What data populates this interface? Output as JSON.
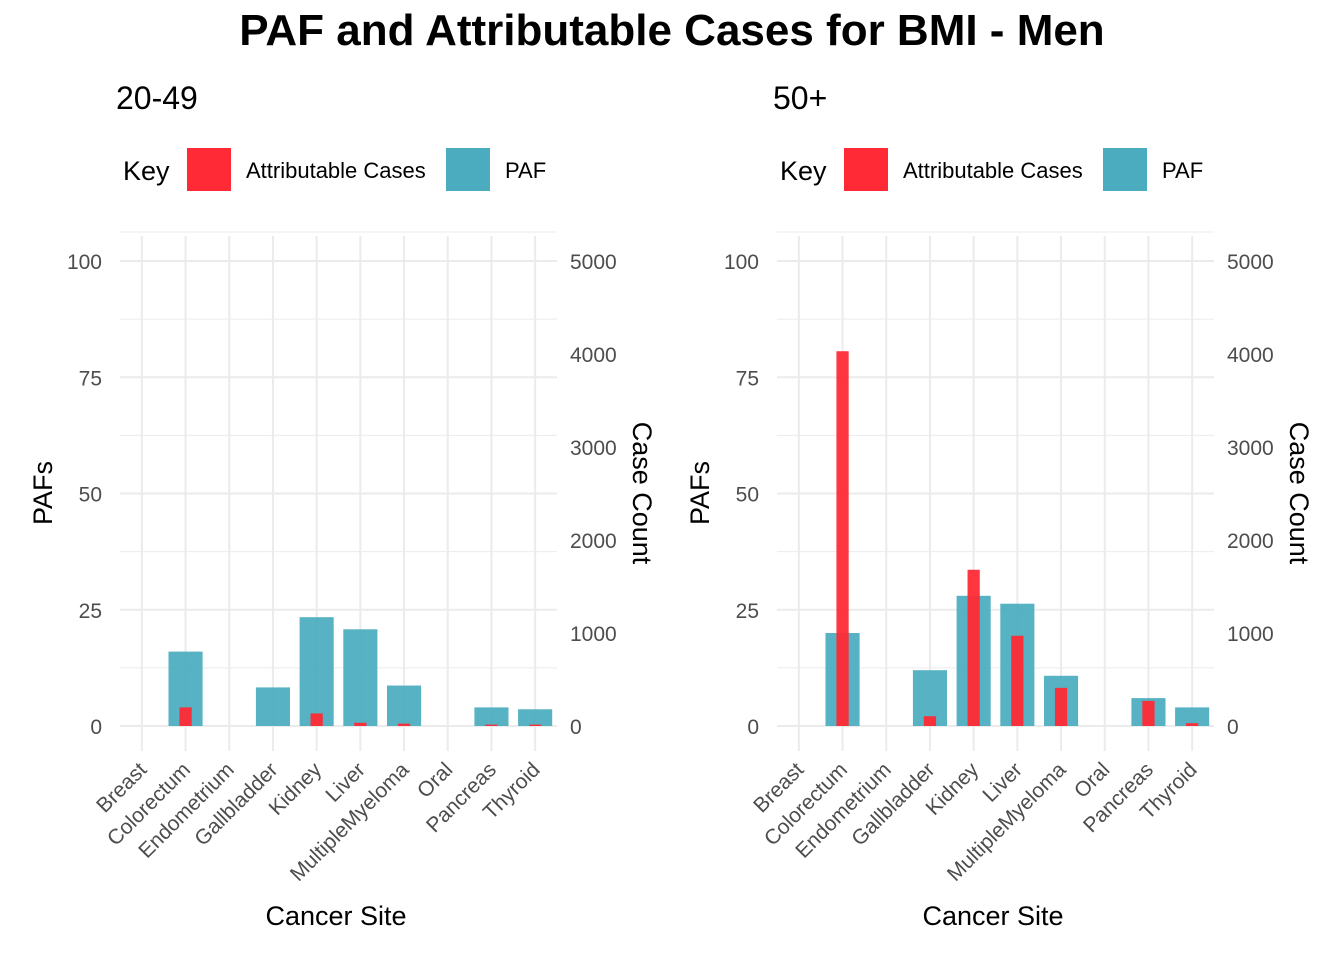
{
  "title": "PAF and Attributable Cases for BMI - Men",
  "colors": {
    "attributable": "#FF2A35",
    "paf": "#4AACBE",
    "grid": "#EBEBEB",
    "tick_text": "#4D4D4D"
  },
  "legend": {
    "title": "Key",
    "items": [
      "Attributable Cases",
      "PAF"
    ]
  },
  "chart_data": [
    {
      "type": "bar",
      "title": "20-49",
      "xlabel": "Cancer Site",
      "ylabel": "PAFs",
      "y2label": "Case Count",
      "ylim": [
        0,
        100
      ],
      "y2lim": [
        0,
        5000
      ],
      "yticks": [
        0,
        25,
        50,
        75,
        100
      ],
      "y2ticks": [
        0,
        1000,
        2000,
        3000,
        4000,
        5000
      ],
      "grid": true,
      "legend_position": "top",
      "categories": [
        "Breast",
        "Colorectum",
        "Endometrium",
        "Gallbladder",
        "Kidney",
        "Liver",
        "MultipleMyeloma",
        "Oral",
        "Pancreas",
        "Thyroid"
      ],
      "series": [
        {
          "name": "PAF",
          "axis": "left",
          "values": [
            0,
            16,
            0,
            8.3,
            23.4,
            20.8,
            8.7,
            0,
            4,
            3.6
          ]
        },
        {
          "name": "Attributable Cases",
          "axis": "right",
          "values": [
            0,
            200,
            0,
            0,
            135,
            35,
            25,
            0,
            15,
            15
          ]
        }
      ]
    },
    {
      "type": "bar",
      "title": "50+",
      "xlabel": "Cancer Site",
      "ylabel": "PAFs",
      "y2label": "Case Count",
      "ylim": [
        0,
        100
      ],
      "y2lim": [
        0,
        5000
      ],
      "yticks": [
        0,
        25,
        50,
        75,
        100
      ],
      "y2ticks": [
        0,
        1000,
        2000,
        3000,
        4000,
        5000
      ],
      "grid": true,
      "legend_position": "top",
      "categories": [
        "Breast",
        "Colorectum",
        "Endometrium",
        "Gallbladder",
        "Kidney",
        "Liver",
        "MultipleMyeloma",
        "Oral",
        "Pancreas",
        "Thyroid"
      ],
      "series": [
        {
          "name": "PAF",
          "axis": "left",
          "values": [
            0,
            20,
            0,
            12,
            28,
            26.3,
            10.8,
            0,
            6,
            4
          ]
        },
        {
          "name": "Attributable Cases",
          "axis": "right",
          "values": [
            0,
            4030,
            0,
            105,
            1680,
            970,
            410,
            0,
            270,
            30
          ]
        }
      ]
    }
  ]
}
